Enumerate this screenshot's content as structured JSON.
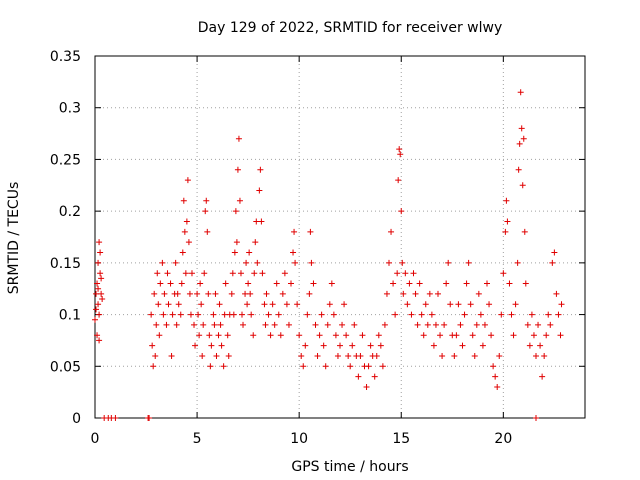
{
  "chart_data": {
    "type": "scatter",
    "title": "Day 129 of 2022, SRMTID for receiver wlwy",
    "xlabel": "GPS time / hours",
    "ylabel": "SRMTID / TECUs",
    "xlim": [
      0,
      24
    ],
    "ylim": [
      0,
      0.35
    ],
    "x_ticks": [
      0,
      5,
      10,
      15,
      20
    ],
    "x_tick_labels": [
      "0",
      "5",
      "10",
      "15",
      "20"
    ],
    "y_ticks": [
      0,
      0.05,
      0.1,
      0.15,
      0.2,
      0.25,
      0.3,
      0.35
    ],
    "y_tick_labels": [
      "0",
      "0.05",
      "0.1",
      "0.15",
      "0.2",
      "0.25",
      "0.3",
      "0.35"
    ],
    "grid": true,
    "marker": "+",
    "color": "#e00000",
    "series": [
      {
        "name": "SRMTID",
        "points": [
          [
            0.0,
            0.095
          ],
          [
            0.05,
            0.12
          ],
          [
            0.1,
            0.13
          ],
          [
            0.1,
            0.08
          ],
          [
            0.15,
            0.15
          ],
          [
            0.15,
            0.11
          ],
          [
            0.2,
            0.17
          ],
          [
            0.2,
            0.1
          ],
          [
            0.25,
            0.14
          ],
          [
            0.25,
            0.16
          ],
          [
            0.3,
            0.12
          ],
          [
            0.3,
            0.135
          ],
          [
            0.35,
            0.115
          ],
          [
            0.05,
            0.105
          ],
          [
            0.2,
            0.075
          ],
          [
            0.15,
            0.125
          ],
          [
            0.45,
            0.0
          ],
          [
            0.65,
            0.0
          ],
          [
            0.8,
            0.0
          ],
          [
            1.0,
            0.0
          ],
          [
            2.6,
            0.0
          ],
          [
            2.65,
            0.0
          ],
          [
            21.6,
            0.0
          ],
          [
            2.75,
            0.1
          ],
          [
            2.8,
            0.07
          ],
          [
            2.85,
            0.05
          ],
          [
            2.9,
            0.12
          ],
          [
            2.95,
            0.06
          ],
          [
            3.0,
            0.09
          ],
          [
            3.05,
            0.14
          ],
          [
            3.1,
            0.11
          ],
          [
            3.15,
            0.08
          ],
          [
            3.2,
            0.13
          ],
          [
            3.3,
            0.15
          ],
          [
            3.35,
            0.1
          ],
          [
            3.4,
            0.12
          ],
          [
            3.5,
            0.09
          ],
          [
            3.55,
            0.14
          ],
          [
            3.6,
            0.11
          ],
          [
            3.7,
            0.13
          ],
          [
            3.75,
            0.06
          ],
          [
            3.8,
            0.1
          ],
          [
            3.9,
            0.12
          ],
          [
            3.95,
            0.15
          ],
          [
            4.0,
            0.09
          ],
          [
            4.05,
            0.12
          ],
          [
            4.1,
            0.11
          ],
          [
            4.2,
            0.1
          ],
          [
            4.25,
            0.13
          ],
          [
            4.3,
            0.16
          ],
          [
            4.35,
            0.21
          ],
          [
            4.4,
            0.18
          ],
          [
            4.45,
            0.14
          ],
          [
            4.5,
            0.19
          ],
          [
            4.55,
            0.23
          ],
          [
            4.6,
            0.17
          ],
          [
            4.65,
            0.12
          ],
          [
            4.7,
            0.1
          ],
          [
            4.75,
            0.14
          ],
          [
            4.85,
            0.09
          ],
          [
            4.9,
            0.07
          ],
          [
            5.0,
            0.12
          ],
          [
            5.05,
            0.1
          ],
          [
            5.1,
            0.08
          ],
          [
            5.15,
            0.13
          ],
          [
            5.2,
            0.11
          ],
          [
            5.25,
            0.06
          ],
          [
            5.3,
            0.09
          ],
          [
            5.35,
            0.14
          ],
          [
            5.4,
            0.2
          ],
          [
            5.45,
            0.21
          ],
          [
            5.5,
            0.18
          ],
          [
            5.55,
            0.12
          ],
          [
            5.6,
            0.08
          ],
          [
            5.65,
            0.05
          ],
          [
            5.7,
            0.07
          ],
          [
            5.8,
            0.1
          ],
          [
            5.85,
            0.09
          ],
          [
            5.9,
            0.12
          ],
          [
            5.95,
            0.06
          ],
          [
            6.05,
            0.08
          ],
          [
            6.1,
            0.11
          ],
          [
            6.15,
            0.09
          ],
          [
            6.2,
            0.07
          ],
          [
            6.3,
            0.05
          ],
          [
            6.35,
            0.1
          ],
          [
            6.4,
            0.13
          ],
          [
            6.5,
            0.08
          ],
          [
            6.55,
            0.06
          ],
          [
            6.6,
            0.1
          ],
          [
            6.7,
            0.12
          ],
          [
            6.75,
            0.14
          ],
          [
            6.8,
            0.1
          ],
          [
            6.85,
            0.16
          ],
          [
            6.9,
            0.2
          ],
          [
            6.95,
            0.17
          ],
          [
            7.0,
            0.24
          ],
          [
            7.05,
            0.27
          ],
          [
            7.1,
            0.21
          ],
          [
            7.15,
            0.14
          ],
          [
            7.2,
            0.1
          ],
          [
            7.25,
            0.09
          ],
          [
            7.35,
            0.12
          ],
          [
            7.4,
            0.15
          ],
          [
            7.45,
            0.11
          ],
          [
            7.5,
            0.13
          ],
          [
            7.55,
            0.16
          ],
          [
            7.6,
            0.12
          ],
          [
            7.65,
            0.1
          ],
          [
            7.75,
            0.08
          ],
          [
            7.8,
            0.14
          ],
          [
            7.85,
            0.17
          ],
          [
            7.9,
            0.19
          ],
          [
            7.95,
            0.15
          ],
          [
            8.05,
            0.22
          ],
          [
            8.1,
            0.24
          ],
          [
            8.15,
            0.19
          ],
          [
            8.2,
            0.14
          ],
          [
            8.3,
            0.11
          ],
          [
            8.35,
            0.09
          ],
          [
            8.4,
            0.12
          ],
          [
            8.5,
            0.1
          ],
          [
            8.6,
            0.08
          ],
          [
            8.7,
            0.11
          ],
          [
            8.8,
            0.09
          ],
          [
            8.9,
            0.13
          ],
          [
            9.0,
            0.1
          ],
          [
            9.1,
            0.08
          ],
          [
            9.2,
            0.12
          ],
          [
            9.3,
            0.14
          ],
          [
            9.4,
            0.11
          ],
          [
            9.5,
            0.09
          ],
          [
            9.6,
            0.13
          ],
          [
            9.7,
            0.16
          ],
          [
            9.75,
            0.18
          ],
          [
            9.8,
            0.15
          ],
          [
            9.9,
            0.11
          ],
          [
            10.0,
            0.08
          ],
          [
            10.1,
            0.06
          ],
          [
            10.2,
            0.05
          ],
          [
            10.3,
            0.07
          ],
          [
            10.4,
            0.1
          ],
          [
            10.5,
            0.12
          ],
          [
            10.55,
            0.18
          ],
          [
            10.6,
            0.15
          ],
          [
            10.7,
            0.13
          ],
          [
            10.8,
            0.09
          ],
          [
            10.9,
            0.06
          ],
          [
            11.0,
            0.08
          ],
          [
            11.1,
            0.1
          ],
          [
            11.2,
            0.07
          ],
          [
            11.3,
            0.05
          ],
          [
            11.4,
            0.09
          ],
          [
            11.5,
            0.11
          ],
          [
            11.6,
            0.13
          ],
          [
            11.7,
            0.1
          ],
          [
            11.8,
            0.08
          ],
          [
            11.9,
            0.06
          ],
          [
            12.0,
            0.07
          ],
          [
            12.1,
            0.09
          ],
          [
            12.2,
            0.11
          ],
          [
            12.3,
            0.08
          ],
          [
            12.4,
            0.06
          ],
          [
            12.5,
            0.05
          ],
          [
            12.6,
            0.07
          ],
          [
            12.7,
            0.09
          ],
          [
            12.8,
            0.06
          ],
          [
            12.9,
            0.04
          ],
          [
            13.0,
            0.06
          ],
          [
            13.1,
            0.08
          ],
          [
            13.2,
            0.05
          ],
          [
            13.3,
            0.03
          ],
          [
            13.4,
            0.05
          ],
          [
            13.5,
            0.07
          ],
          [
            13.6,
            0.06
          ],
          [
            13.7,
            0.04
          ],
          [
            13.8,
            0.06
          ],
          [
            13.9,
            0.08
          ],
          [
            14.0,
            0.07
          ],
          [
            14.1,
            0.05
          ],
          [
            14.2,
            0.09
          ],
          [
            14.3,
            0.12
          ],
          [
            14.4,
            0.15
          ],
          [
            14.5,
            0.18
          ],
          [
            14.6,
            0.13
          ],
          [
            14.7,
            0.1
          ],
          [
            14.8,
            0.14
          ],
          [
            14.85,
            0.23
          ],
          [
            14.9,
            0.26
          ],
          [
            14.95,
            0.255
          ],
          [
            15.0,
            0.2
          ],
          [
            15.05,
            0.15
          ],
          [
            15.1,
            0.12
          ],
          [
            15.2,
            0.14
          ],
          [
            15.3,
            0.11
          ],
          [
            15.4,
            0.13
          ],
          [
            15.5,
            0.1
          ],
          [
            15.6,
            0.14
          ],
          [
            15.7,
            0.12
          ],
          [
            15.8,
            0.09
          ],
          [
            15.9,
            0.13
          ],
          [
            16.0,
            0.1
          ],
          [
            16.1,
            0.08
          ],
          [
            16.2,
            0.11
          ],
          [
            16.3,
            0.09
          ],
          [
            16.4,
            0.12
          ],
          [
            16.5,
            0.1
          ],
          [
            16.6,
            0.07
          ],
          [
            16.7,
            0.09
          ],
          [
            16.8,
            0.12
          ],
          [
            16.9,
            0.08
          ],
          [
            17.0,
            0.06
          ],
          [
            17.1,
            0.09
          ],
          [
            17.2,
            0.13
          ],
          [
            17.3,
            0.15
          ],
          [
            17.4,
            0.11
          ],
          [
            17.5,
            0.08
          ],
          [
            17.6,
            0.06
          ],
          [
            17.7,
            0.08
          ],
          [
            17.8,
            0.11
          ],
          [
            17.9,
            0.09
          ],
          [
            18.0,
            0.07
          ],
          [
            18.1,
            0.1
          ],
          [
            18.2,
            0.13
          ],
          [
            18.3,
            0.15
          ],
          [
            18.4,
            0.11
          ],
          [
            18.5,
            0.08
          ],
          [
            18.6,
            0.06
          ],
          [
            18.7,
            0.09
          ],
          [
            18.8,
            0.12
          ],
          [
            18.9,
            0.1
          ],
          [
            19.0,
            0.07
          ],
          [
            19.1,
            0.09
          ],
          [
            19.2,
            0.13
          ],
          [
            19.3,
            0.11
          ],
          [
            19.4,
            0.08
          ],
          [
            19.5,
            0.05
          ],
          [
            19.6,
            0.04
          ],
          [
            19.7,
            0.03
          ],
          [
            19.8,
            0.06
          ],
          [
            19.9,
            0.1
          ],
          [
            20.0,
            0.14
          ],
          [
            20.1,
            0.18
          ],
          [
            20.15,
            0.21
          ],
          [
            20.2,
            0.19
          ],
          [
            20.3,
            0.13
          ],
          [
            20.4,
            0.1
          ],
          [
            20.5,
            0.08
          ],
          [
            20.6,
            0.11
          ],
          [
            20.7,
            0.15
          ],
          [
            20.75,
            0.24
          ],
          [
            20.8,
            0.265
          ],
          [
            20.85,
            0.315
          ],
          [
            20.9,
            0.28
          ],
          [
            20.95,
            0.225
          ],
          [
            21.0,
            0.27
          ],
          [
            21.05,
            0.18
          ],
          [
            21.1,
            0.13
          ],
          [
            21.2,
            0.09
          ],
          [
            21.3,
            0.07
          ],
          [
            21.4,
            0.1
          ],
          [
            21.5,
            0.08
          ],
          [
            21.6,
            0.06
          ],
          [
            21.7,
            0.09
          ],
          [
            21.8,
            0.07
          ],
          [
            21.9,
            0.04
          ],
          [
            22.0,
            0.06
          ],
          [
            22.1,
            0.08
          ],
          [
            22.2,
            0.1
          ],
          [
            22.3,
            0.09
          ],
          [
            22.4,
            0.15
          ],
          [
            22.5,
            0.16
          ],
          [
            22.6,
            0.12
          ],
          [
            22.7,
            0.1
          ],
          [
            22.8,
            0.08
          ],
          [
            22.85,
            0.11
          ]
        ]
      }
    ]
  }
}
